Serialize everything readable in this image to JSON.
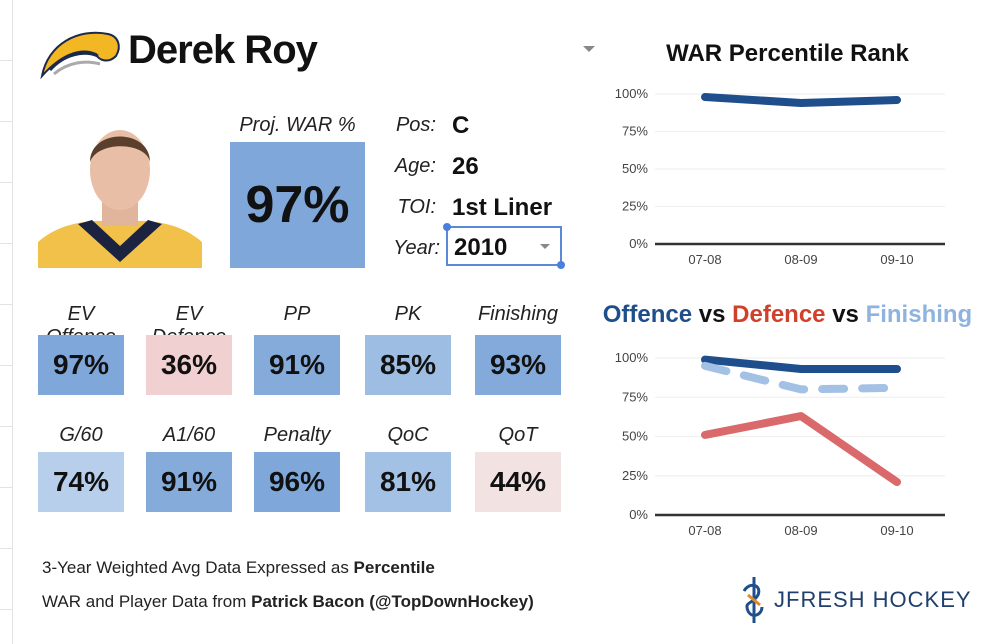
{
  "player": {
    "name": "Derek Roy",
    "proj_war_label": "Proj. WAR %",
    "proj_war": "97%",
    "pos_label": "Pos:",
    "pos": "C",
    "age_label": "Age:",
    "age": "26",
    "toi_label": "TOI:",
    "toi": "1st Liner",
    "year_label": "Year:",
    "year": "2010"
  },
  "tiles": [
    {
      "label": "EV Offence",
      "value": "97%",
      "color": "#7fa7d9"
    },
    {
      "label": "EV Defence",
      "value": "36%",
      "color": "#f0d0d0"
    },
    {
      "label": "PP",
      "value": "91%",
      "color": "#85abdb"
    },
    {
      "label": "PK",
      "value": "85%",
      "color": "#9dbde3"
    },
    {
      "label": "Finishing",
      "value": "93%",
      "color": "#84aadb"
    },
    {
      "label": "G/60",
      "value": "74%",
      "color": "#b8cfec"
    },
    {
      "label": "A1/60",
      "value": "91%",
      "color": "#85abdb"
    },
    {
      "label": "Penalty",
      "value": "96%",
      "color": "#7fa7d9"
    },
    {
      "label": "QoC",
      "value": "81%",
      "color": "#a3c1e5"
    },
    {
      "label": "QoT",
      "value": "44%",
      "color": "#f3e2e2"
    }
  ],
  "footer": {
    "line1": "3-Year Weighted Avg Data Expressed as ",
    "line1_bold": "Percentile",
    "line2": "WAR and Player Data from ",
    "line2_bold": "Patrick Bacon (@TopDownHockey)",
    "brand": "JFRESH HOCKEY"
  },
  "chart_data": [
    {
      "type": "line",
      "title": "WAR Percentile Rank",
      "categories": [
        "07-08",
        "08-09",
        "09-10"
      ],
      "ylim": [
        0,
        100
      ],
      "yticks": [
        "0%",
        "25%",
        "50%",
        "75%",
        "100%"
      ],
      "series": [
        {
          "name": "WAR",
          "values": [
            98,
            94,
            96
          ],
          "color": "#1f4e8c",
          "dash": false
        }
      ]
    },
    {
      "type": "line",
      "title_parts": [
        {
          "text": "Offence",
          "color": "#1f4e8c"
        },
        {
          "text": " vs ",
          "color": "#111"
        },
        {
          "text": "Defence",
          "color": "#d0412c"
        },
        {
          "text": " vs ",
          "color": "#111"
        },
        {
          "text": "Finishing",
          "color": "#8fb3e0"
        }
      ],
      "categories": [
        "07-08",
        "08-09",
        "09-10"
      ],
      "ylim": [
        0,
        100
      ],
      "yticks": [
        "0%",
        "25%",
        "50%",
        "75%",
        "100%"
      ],
      "series": [
        {
          "name": "Offence",
          "values": [
            99,
            93,
            93
          ],
          "color": "#1f4e8c",
          "dash": false
        },
        {
          "name": "Finishing",
          "values": [
            95,
            80,
            81
          ],
          "color": "#a3c1e5",
          "dash": true
        },
        {
          "name": "Defence",
          "values": [
            51,
            63,
            21
          ],
          "color": "#d9696a",
          "dash": false
        }
      ]
    }
  ]
}
